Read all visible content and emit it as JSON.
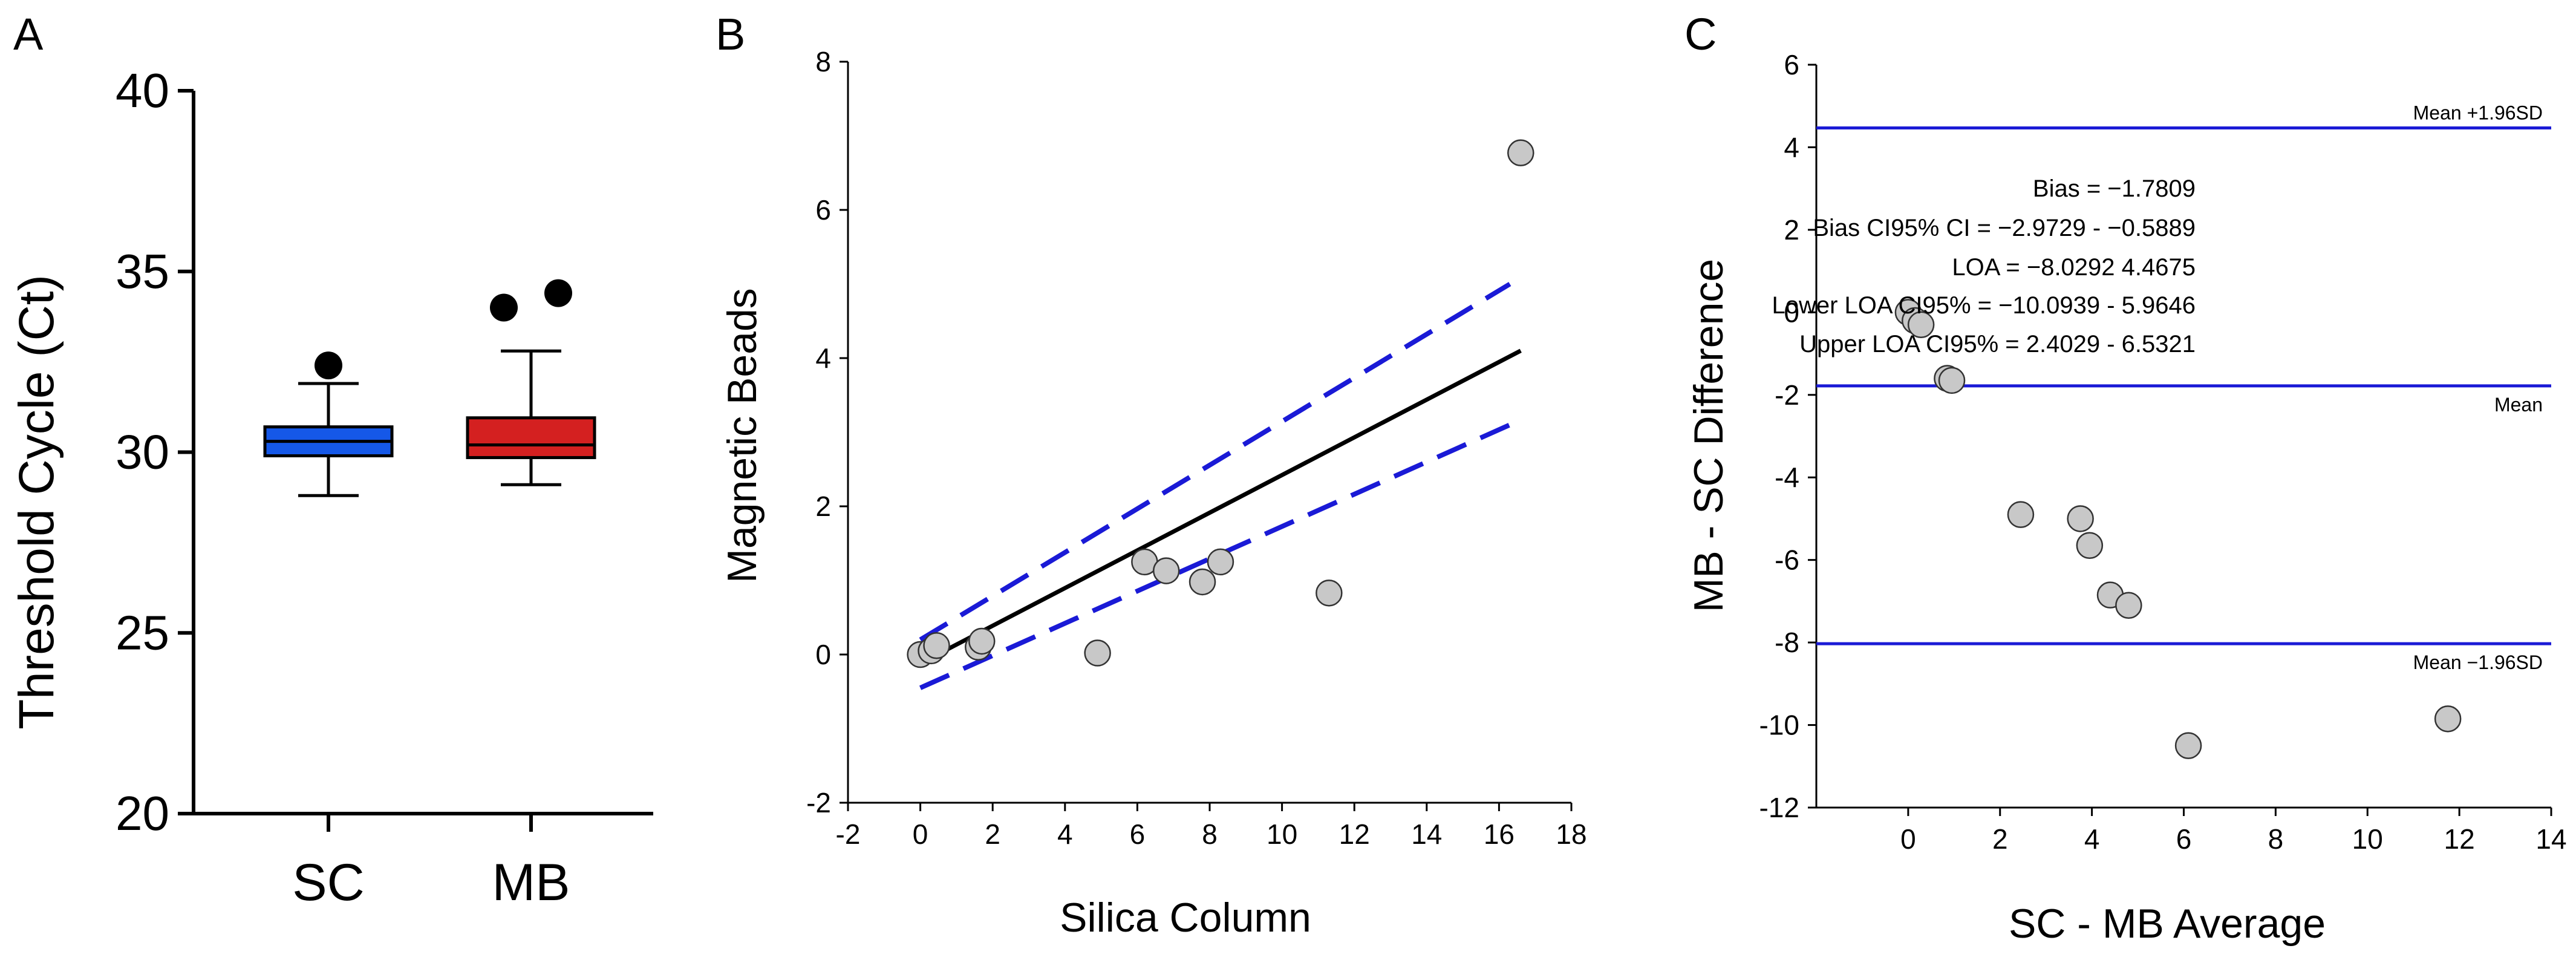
{
  "chart_data": [
    {
      "panel": "A",
      "type": "box",
      "title": "",
      "xlabel": "",
      "ylabel": "Threshold Cycle (Ct)",
      "ylim": [
        20,
        40
      ],
      "yticks": [
        20,
        25,
        30,
        35,
        40
      ],
      "categories": [
        "SC",
        "MB"
      ],
      "boxes": [
        {
          "category": "SC",
          "color": "#1558e8",
          "whisker_low": 28.8,
          "q1": 29.9,
          "median": 30.3,
          "q3": 30.7,
          "whisker_high": 31.9,
          "outliers": [
            32.4
          ]
        },
        {
          "category": "MB",
          "color": "#d42020",
          "whisker_low": 29.1,
          "q1": 29.85,
          "median": 30.2,
          "q3": 30.95,
          "whisker_high": 32.8,
          "outliers": [
            34.0,
            34.4
          ]
        }
      ]
    },
    {
      "panel": "B",
      "type": "scatter",
      "title": "",
      "xlabel": "Silica Column",
      "ylabel": "Magnetic Beads",
      "xlim": [
        -2,
        18
      ],
      "ylim": [
        -2,
        8
      ],
      "xticks": [
        -2,
        0,
        2,
        4,
        6,
        8,
        10,
        12,
        14,
        16,
        18
      ],
      "yticks": [
        -2,
        0,
        2,
        4,
        6,
        8
      ],
      "points": [
        {
          "x": 0.0,
          "y": 0.0
        },
        {
          "x": 0.3,
          "y": 0.05
        },
        {
          "x": 0.45,
          "y": 0.12
        },
        {
          "x": 1.6,
          "y": 0.1
        },
        {
          "x": 1.7,
          "y": 0.18
        },
        {
          "x": 4.9,
          "y": 0.02
        },
        {
          "x": 6.2,
          "y": 1.25
        },
        {
          "x": 6.8,
          "y": 1.13
        },
        {
          "x": 7.8,
          "y": 0.98
        },
        {
          "x": 8.3,
          "y": 1.25
        },
        {
          "x": 11.3,
          "y": 0.83
        },
        {
          "x": 16.6,
          "y": 6.77
        }
      ],
      "fit_line": [
        {
          "x": 0.0,
          "y": -0.12
        },
        {
          "x": 16.6,
          "y": 4.1
        }
      ],
      "ci_upper": [
        {
          "x": 0.0,
          "y": 0.2
        },
        {
          "x": 16.3,
          "y": 5.0
        }
      ],
      "ci_lower": [
        {
          "x": 0.0,
          "y": -0.45
        },
        {
          "x": 16.3,
          "y": 3.1
        }
      ],
      "fit_color": "#000000",
      "ci_color": "#1a1ad6",
      "point_color": "#c8c8c8"
    },
    {
      "panel": "C",
      "type": "scatter",
      "title": "",
      "xlabel": "SC - MB Average",
      "ylabel": "MB - SC Difference",
      "xlim": [
        -2,
        14
      ],
      "ylim": [
        -12,
        6
      ],
      "xticks": [
        0,
        2,
        4,
        6,
        8,
        10,
        12,
        14
      ],
      "yticks": [
        -12,
        -10,
        -8,
        -6,
        -4,
        -2,
        0,
        2,
        4,
        6
      ],
      "points": [
        {
          "x": 0.0,
          "y": 0.0
        },
        {
          "x": 0.15,
          "y": -0.2
        },
        {
          "x": 0.28,
          "y": -0.3
        },
        {
          "x": 0.85,
          "y": -1.6
        },
        {
          "x": 0.95,
          "y": -1.65
        },
        {
          "x": 2.45,
          "y": -4.9
        },
        {
          "x": 3.75,
          "y": -5.0
        },
        {
          "x": 3.95,
          "y": -5.65
        },
        {
          "x": 4.4,
          "y": -6.85
        },
        {
          "x": 4.8,
          "y": -7.1
        },
        {
          "x": 6.1,
          "y": -10.5
        },
        {
          "x": 11.75,
          "y": -9.85
        }
      ],
      "reference_lines": [
        {
          "label": "Mean +1.96SD",
          "y": 4.4675
        },
        {
          "label": "Mean",
          "y": -1.7809
        },
        {
          "label": "Mean −1.96SD",
          "y": -8.0292
        }
      ],
      "line_color": "#1a1ad6",
      "point_color": "#c8c8c8",
      "annotations": [
        "Bias = −1.7809",
        "Bias CI95% CI = −2.9729 - −0.5889",
        "LOA = −8.0292 4.4675",
        "Lower LOA CI95% = −10.0939 - 5.9646",
        "Upper LOA CI95% = 2.4029 - 6.5321"
      ]
    }
  ],
  "panel_labels": [
    "A",
    "B",
    "C"
  ]
}
